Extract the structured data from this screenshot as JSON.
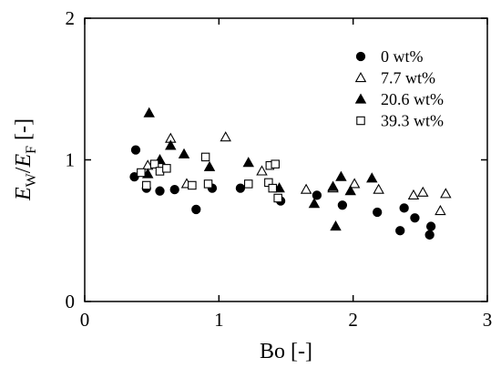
{
  "chart_data": {
    "type": "scatter",
    "xlabel": "Bo [-]",
    "ylabel": {
      "E1": "E",
      "sub1": "W",
      "slash": "/",
      "E2": "E",
      "sub2": "F",
      "unit": " [-]"
    },
    "xlim": [
      0,
      3
    ],
    "ylim": [
      0,
      2
    ],
    "x_ticks": [
      0,
      1,
      2,
      3
    ],
    "x_tick_labels": [
      "0",
      "1",
      "2",
      "3"
    ],
    "y_ticks": [
      0,
      1,
      2
    ],
    "y_tick_labels": [
      "0",
      "1",
      "2"
    ],
    "grid": false,
    "legend_position": "top-right",
    "series": [
      {
        "name": "0 wt%",
        "marker": "circle",
        "filled": true,
        "points": [
          [
            0.37,
            0.88
          ],
          [
            0.38,
            1.07
          ],
          [
            0.46,
            0.8
          ],
          [
            0.56,
            0.78
          ],
          [
            0.67,
            0.79
          ],
          [
            0.83,
            0.65
          ],
          [
            0.95,
            0.8
          ],
          [
            1.16,
            0.8
          ],
          [
            1.46,
            0.71
          ],
          [
            1.73,
            0.75
          ],
          [
            1.92,
            0.68
          ],
          [
            2.18,
            0.63
          ],
          [
            2.35,
            0.5
          ],
          [
            2.38,
            0.66
          ],
          [
            2.46,
            0.59
          ],
          [
            2.57,
            0.47
          ],
          [
            2.58,
            0.53
          ]
        ]
      },
      {
        "name": "7.7 wt%",
        "marker": "triangle",
        "filled": false,
        "points": [
          [
            0.47,
            0.96
          ],
          [
            0.64,
            1.15
          ],
          [
            0.76,
            0.83
          ],
          [
            1.05,
            1.16
          ],
          [
            1.32,
            0.92
          ],
          [
            1.65,
            0.79
          ],
          [
            1.85,
            0.8
          ],
          [
            2.01,
            0.83
          ],
          [
            2.19,
            0.79
          ],
          [
            2.45,
            0.75
          ],
          [
            2.52,
            0.77
          ],
          [
            2.65,
            0.64
          ],
          [
            2.69,
            0.76
          ]
        ]
      },
      {
        "name": "20.6 wt%",
        "marker": "triangle",
        "filled": true,
        "points": [
          [
            0.47,
            0.9
          ],
          [
            0.48,
            1.33
          ],
          [
            0.56,
            1.0
          ],
          [
            0.64,
            1.1
          ],
          [
            0.74,
            1.04
          ],
          [
            0.93,
            0.95
          ],
          [
            1.22,
            0.98
          ],
          [
            1.45,
            0.8
          ],
          [
            1.71,
            0.69
          ],
          [
            1.85,
            0.81
          ],
          [
            1.87,
            0.53
          ],
          [
            1.91,
            0.88
          ],
          [
            1.98,
            0.78
          ],
          [
            2.14,
            0.87
          ]
        ]
      },
      {
        "name": "39.3 wt%",
        "marker": "square",
        "filled": false,
        "points": [
          [
            0.42,
            0.91
          ],
          [
            0.46,
            0.82
          ],
          [
            0.52,
            0.97
          ],
          [
            0.56,
            0.92
          ],
          [
            0.61,
            0.94
          ],
          [
            0.8,
            0.82
          ],
          [
            0.9,
            1.02
          ],
          [
            0.92,
            0.83
          ],
          [
            1.22,
            0.83
          ],
          [
            1.37,
            0.84
          ],
          [
            1.38,
            0.96
          ],
          [
            1.4,
            0.8
          ],
          [
            1.42,
            0.97
          ],
          [
            1.44,
            0.73
          ]
        ]
      }
    ]
  }
}
